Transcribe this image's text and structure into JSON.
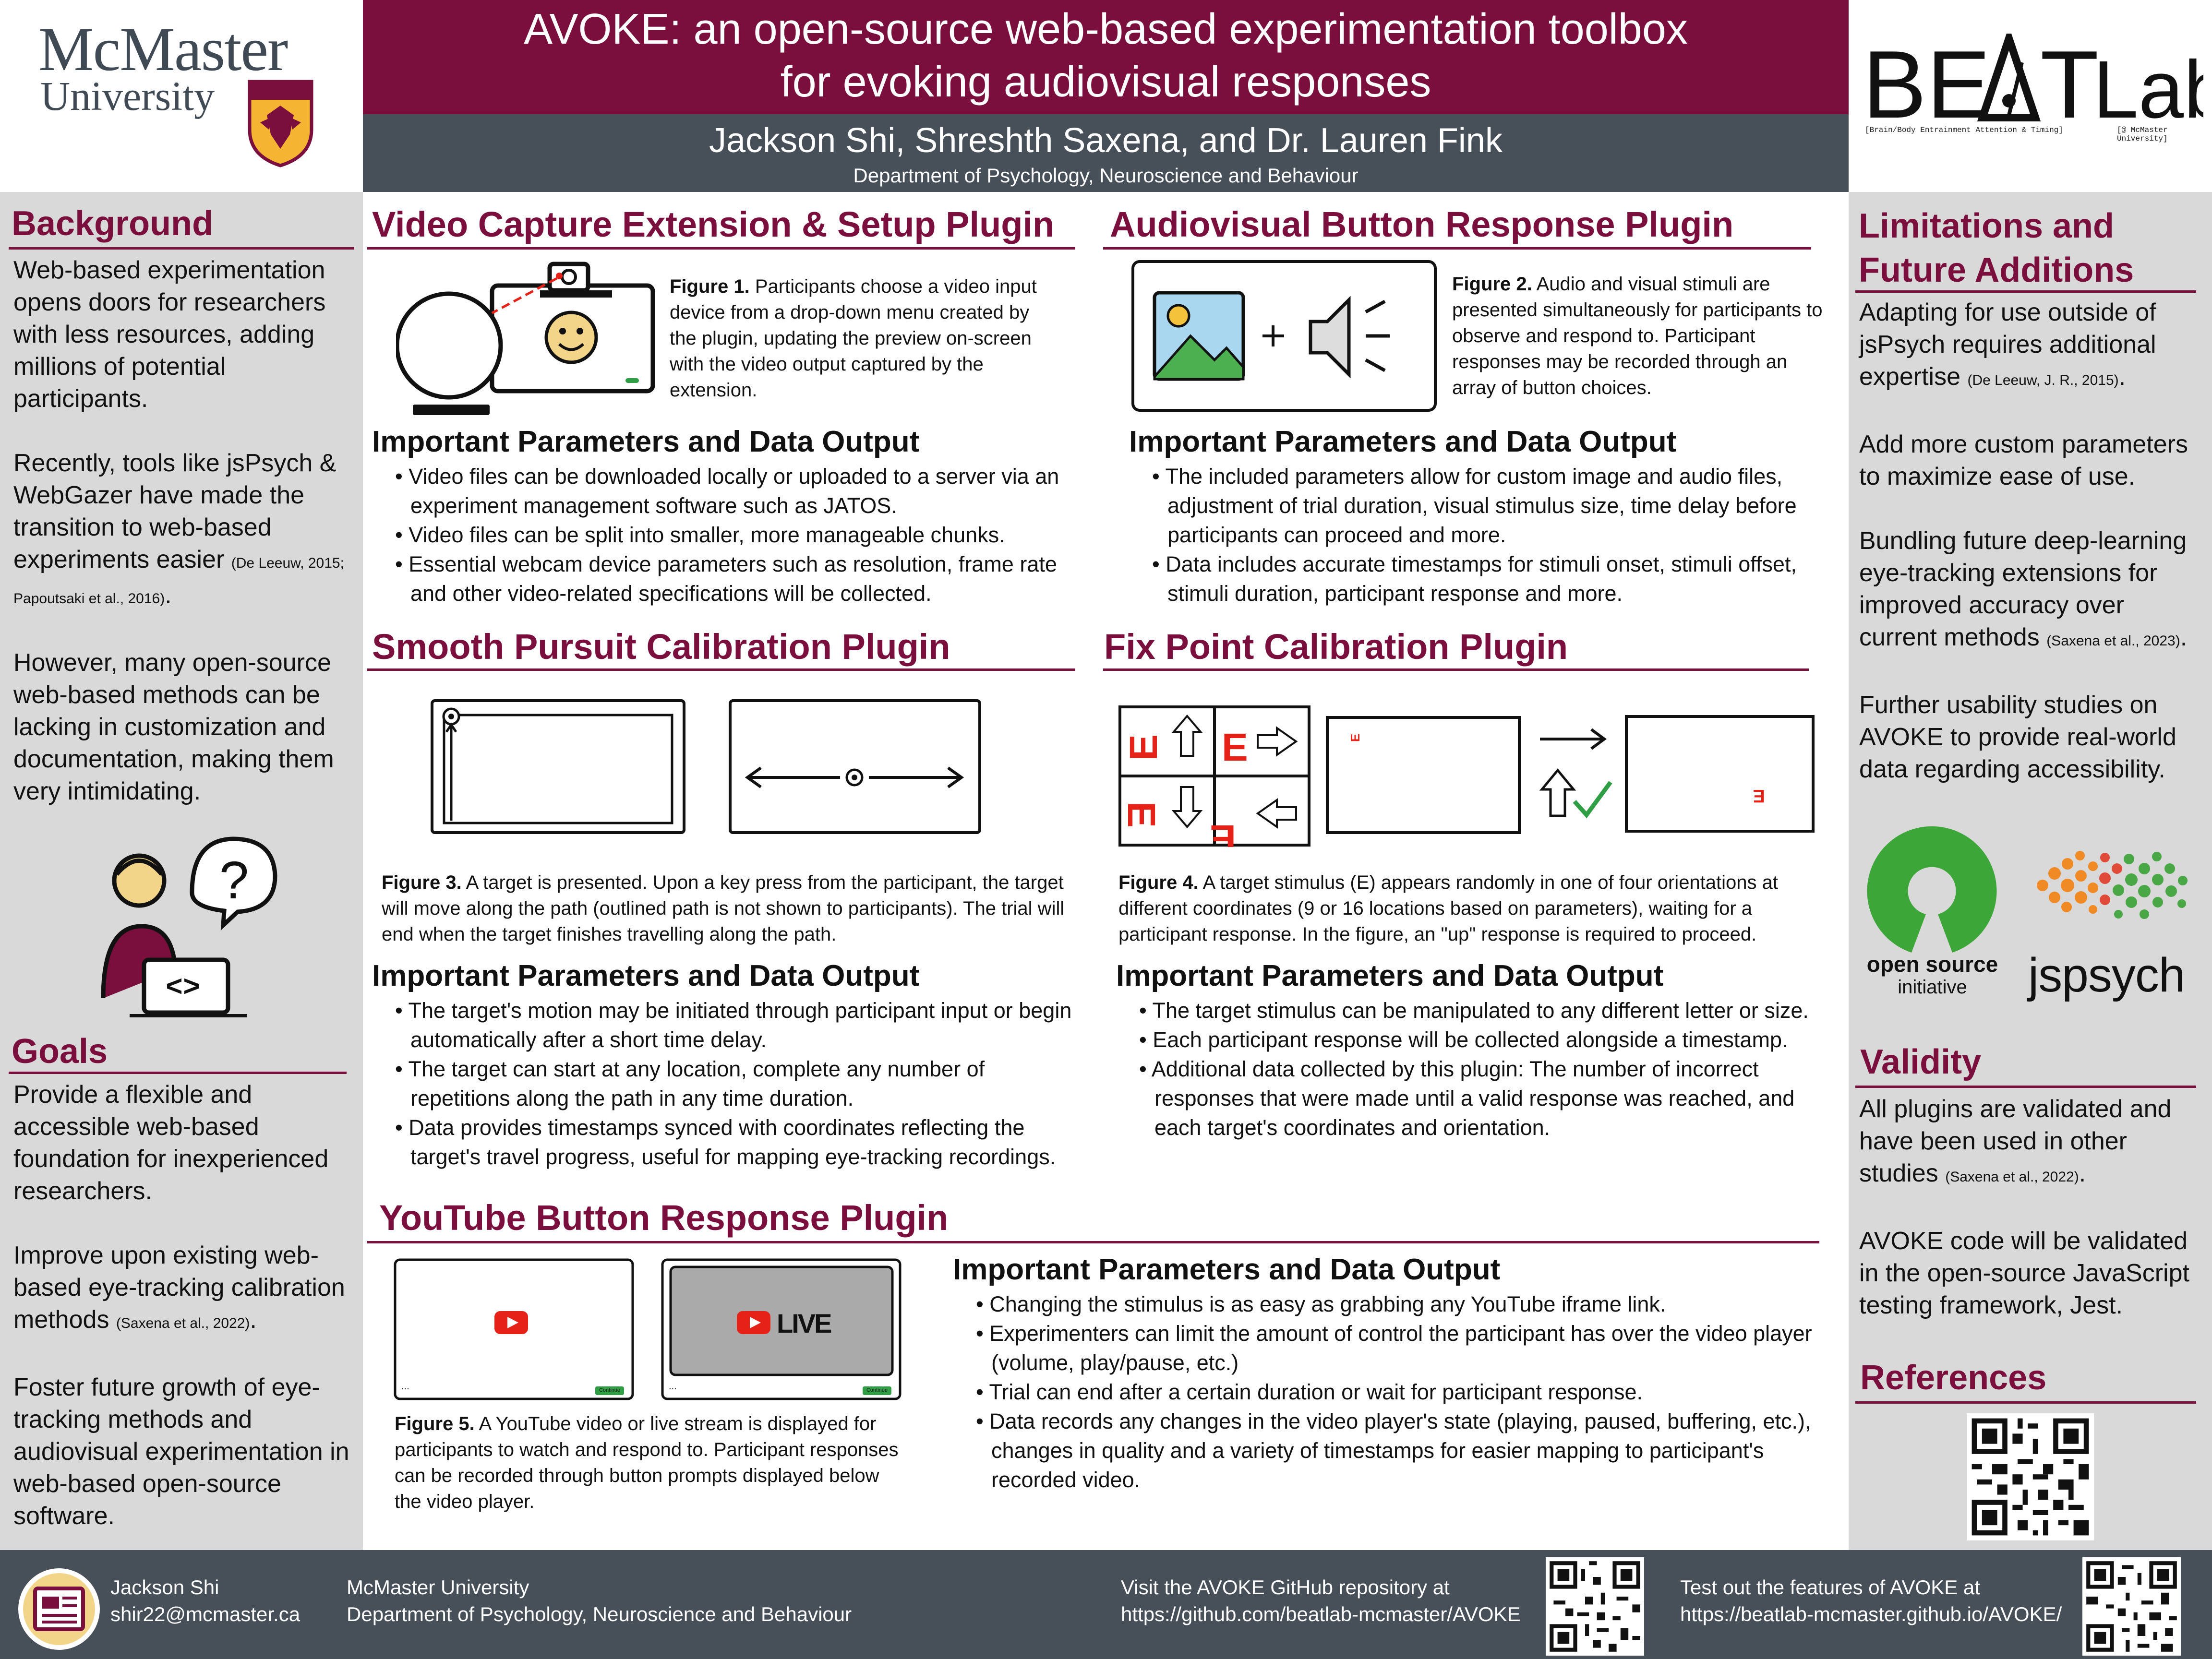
{
  "header": {
    "title_line1": "AVOKE: an open-source web-based experimentation toolbox",
    "title_line2": "for evoking audiovisual responses",
    "authors": "Jackson Shi, Shreshth Saxena, and Dr. Lauren Fink",
    "department": "Department of Psychology, Neuroscience and Behaviour",
    "university_name": "McMaster",
    "university_sub": "University",
    "lab_logo": "BEAT Lab",
    "lab_sub1": "[Brain/Body Entrainment Attention & Timing]",
    "lab_sub2": "[@ McMaster University]"
  },
  "background": {
    "heading": "Background",
    "p1": "Web-based experimentation opens doors for researchers with less resources, adding millions of potential participants.",
    "p2": "Recently, tools like jsPsych & WebGazer have made the transition to web-based experiments easier",
    "p2_cite": "(De Leeuw, 2015; Papoutsaki et al., 2016)",
    "p3": "However, many open-source web-based methods can be lacking in customization and documentation, making them very intimidating."
  },
  "goals": {
    "heading": "Goals",
    "p1": "Provide a flexible and accessible web-based foundation for inexperienced researchers.",
    "p2": "Improve upon existing web-based eye-tracking calibration methods",
    "p2_cite": "(Saxena et al., 2022)",
    "p3": "Foster future growth of eye-tracking methods and audiovisual experimentation in web-based open-source software."
  },
  "video_capture": {
    "heading": "Video Capture Extension & Setup Plugin",
    "fig_label": "Figure 1.",
    "fig_text": "Participants choose a video input device from a drop-down menu created by the plugin, updating the preview on-screen with the video output captured by the extension.",
    "sub": "Important Parameters and Data Output",
    "bullets": [
      "Video files can be downloaded locally or uploaded to a server via an experiment management software such as JATOS.",
      "Video files can be split into smaller, more manageable chunks.",
      "Essential webcam device parameters such as resolution, frame rate and other video-related specifications will be collected."
    ]
  },
  "audiovisual": {
    "heading": "Audiovisual Button Response Plugin",
    "fig_label": "Figure 2.",
    "fig_text": "Audio and visual stimuli are presented simultaneously for participants to observe and respond to. Participant responses may be recorded through an array of button choices.",
    "sub": "Important Parameters and Data Output",
    "bullets": [
      "The included parameters allow for custom image and audio files, adjustment of trial duration, visual stimulus size, time delay before participants can proceed and more.",
      "Data includes accurate timestamps for stimuli onset, stimuli offset, stimuli duration, participant response and more."
    ]
  },
  "smooth_pursuit": {
    "heading": "Smooth Pursuit Calibration Plugin",
    "fig_label": "Figure 3.",
    "fig_text": "A target is presented. Upon a key press from the participant, the target will move along the path (outlined path is not shown to participants). The trial will end when the target finishes travelling along the path.",
    "sub": "Important Parameters and Data Output",
    "bullets": [
      "The target's motion may be initiated through participant input or begin automatically after a short time delay.",
      "The target can start at any location, complete any number of repetitions along the path in any time duration.",
      "Data provides timestamps synced with coordinates reflecting the target's travel progress, useful for mapping eye-tracking recordings."
    ]
  },
  "fix_point": {
    "heading": "Fix Point Calibration Plugin",
    "fig_label": "Figure 4.",
    "fig_text": "A target stimulus (E) appears randomly in one of four orientations at different coordinates (9 or 16 locations based on parameters), waiting for a participant response. In the figure, an \"up\" response is required to proceed.",
    "sub": "Important Parameters and Data Output",
    "bullets": [
      "The target stimulus can be manipulated to any different letter or size.",
      "Each participant response will be collected alongside a timestamp.",
      "Additional data collected by this plugin: The number of incorrect responses that were made until a valid response was reached, and each target's coordinates and orientation."
    ]
  },
  "youtube": {
    "heading": "YouTube Button Response Plugin",
    "live_label": "LIVE",
    "continue_label": "Continue",
    "dots": "...",
    "fig_label": "Figure 5.",
    "fig_text": "A YouTube video or live stream is displayed for participants to watch and respond to. Participant responses can be recorded through button prompts displayed below the video player.",
    "sub": "Important Parameters and Data Output",
    "bullets": [
      "Changing the stimulus is as easy as grabbing any YouTube iframe link.",
      "Experimenters can limit the amount of control the participant has over the video player (volume, play/pause, etc.)",
      "Trial can end after a certain duration or wait for participant response.",
      "Data records any changes in the video player's state (playing, paused, buffering, etc.), changes in quality and a variety of timestamps for easier mapping to participant's recorded video."
    ]
  },
  "limitations": {
    "heading_line1": "Limitations and",
    "heading_line2": "Future Additions",
    "p1": "Adapting for use outside of jsPsych requires additional expertise",
    "p1_cite": "(De Leeuw, J. R., 2015)",
    "p2": "Add more custom parameters to maximize ease of use.",
    "p3": "Bundling future deep-learning eye-tracking extensions for improved accuracy over current methods",
    "p3_cite": "(Saxena et al., 2023)",
    "p4": "Further usability studies on AVOKE to provide real-world data regarding accessibility.",
    "osi_line1": "open source",
    "osi_line2": "initiative",
    "jspsych": "jspsych"
  },
  "validity": {
    "heading": "Validity",
    "p1": "All plugins are validated and have been used in other studies",
    "p1_cite": "(Saxena et al., 2022)",
    "p2": "AVOKE code will be validated in the open-source JavaScript testing framework, Jest."
  },
  "references": {
    "heading": "References"
  },
  "footer": {
    "name": "Jackson Shi",
    "email": "shir22@mcmaster.ca",
    "university": "McMaster University",
    "department": "Department of Psychology, Neuroscience and Behaviour",
    "github_line1": "Visit the AVOKE GitHub repository at",
    "github_line2": "https://github.com/beatlab-mcmaster/AVOKE",
    "demo_line1": "Test out the features of AVOKE at",
    "demo_line2": "https://beatlab-mcmaster.github.io/AVOKE/"
  },
  "colors": {
    "maroon": "#7a0f3d",
    "slate": "#474f59",
    "column_grey": "#d9d9d9",
    "youtube_red": "#e62117",
    "check_green": "#2f9e44"
  }
}
